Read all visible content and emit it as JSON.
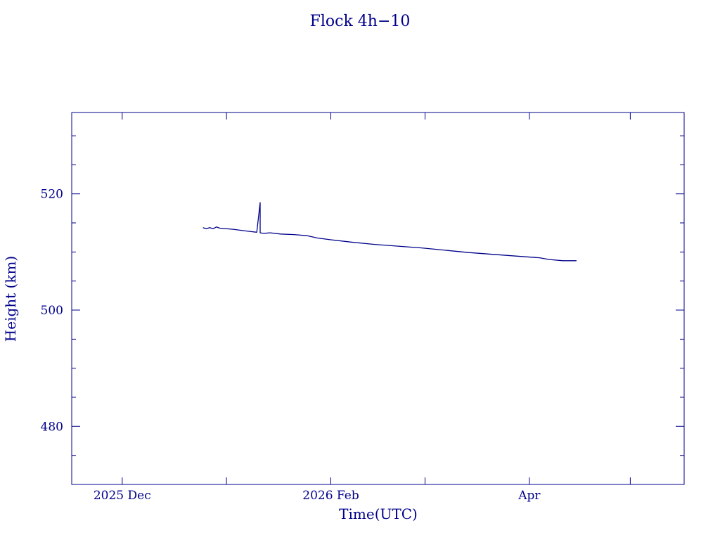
{
  "chart_data": {
    "type": "line",
    "title": "Flock 4h−10",
    "xlabel": "Time(UTC)",
    "ylabel": "Height (km)",
    "x_ticks": [
      {
        "date": "2025-12-01",
        "label": "2025 Dec"
      },
      {
        "date": "2026-01-01",
        "label": ""
      },
      {
        "date": "2026-02-01",
        "label": "2026 Feb"
      },
      {
        "date": "2026-03-01",
        "label": ""
      },
      {
        "date": "2026-04-01",
        "label": "Apr"
      },
      {
        "date": "2026-05-01",
        "label": ""
      }
    ],
    "y_ticks": [
      480,
      500,
      520
    ],
    "xlim": [
      "2025-11-16",
      "2026-05-17"
    ],
    "ylim": [
      470,
      534
    ],
    "grid": false,
    "color": "#00008b",
    "series": [
      {
        "points": [
          [
            "2025-12-25",
            514.2
          ],
          [
            "2025-12-26",
            514.0
          ],
          [
            "2025-12-27",
            514.2
          ],
          [
            "2025-12-28",
            514.0
          ],
          [
            "2025-12-29",
            514.3
          ],
          [
            "2025-12-30",
            514.1
          ],
          [
            "2026-01-03",
            513.9
          ],
          [
            "2026-01-07",
            513.6
          ],
          [
            "2026-01-10",
            513.4
          ],
          [
            "2026-01-11",
            518.5
          ],
          [
            "2026-01-11",
            513.3
          ],
          [
            "2026-01-12",
            513.2
          ],
          [
            "2026-01-14",
            513.3
          ],
          [
            "2026-01-17",
            513.1
          ],
          [
            "2026-01-21",
            513.0
          ],
          [
            "2026-01-25",
            512.8
          ],
          [
            "2026-01-28",
            512.4
          ],
          [
            "2026-02-01",
            512.1
          ],
          [
            "2026-02-07",
            511.7
          ],
          [
            "2026-02-14",
            511.3
          ],
          [
            "2026-02-21",
            511.0
          ],
          [
            "2026-02-28",
            510.7
          ],
          [
            "2026-03-07",
            510.3
          ],
          [
            "2026-03-14",
            509.9
          ],
          [
            "2026-03-21",
            509.6
          ],
          [
            "2026-03-28",
            509.3
          ],
          [
            "2026-04-04",
            509.0
          ],
          [
            "2026-04-07",
            508.7
          ],
          [
            "2026-04-11",
            508.5
          ],
          [
            "2026-04-15",
            508.5
          ]
        ]
      }
    ]
  }
}
